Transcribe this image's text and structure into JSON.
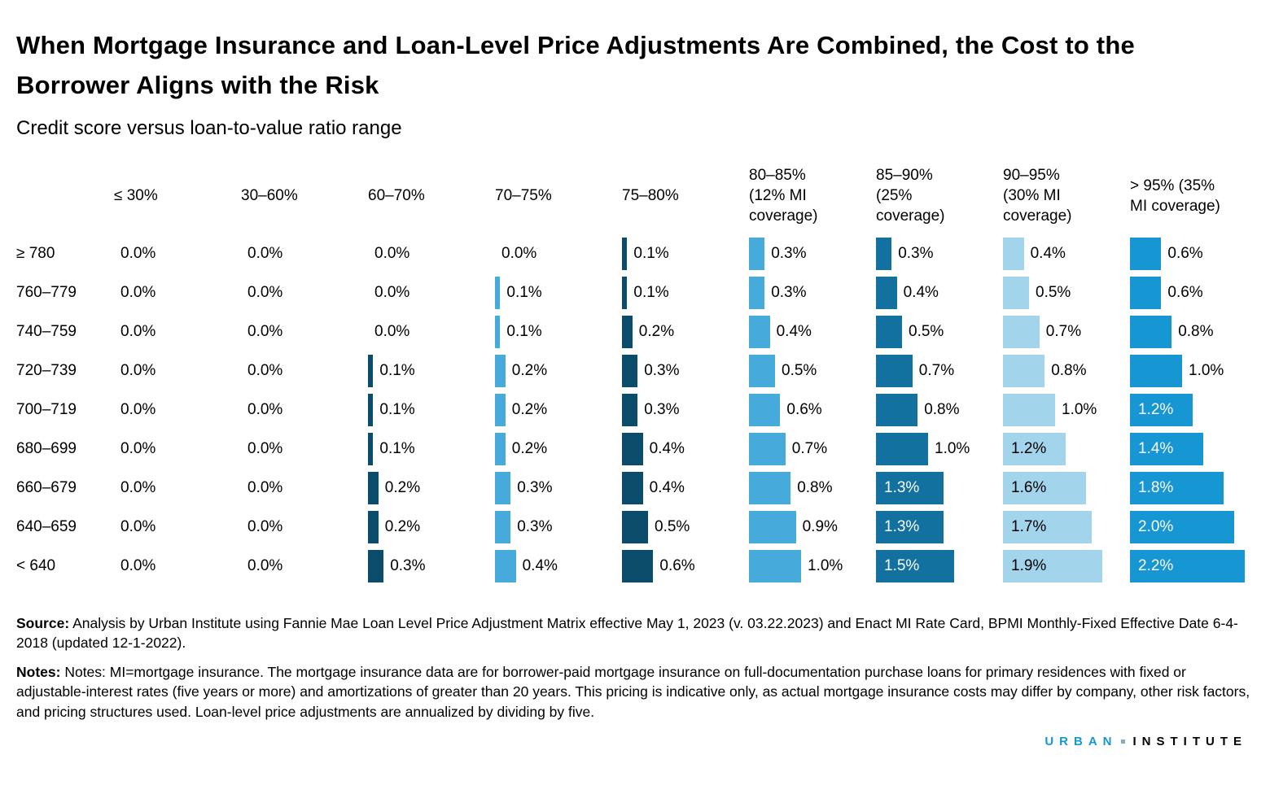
{
  "header": {
    "title": "When Mortgage Insurance and Loan-Level Price Adjustments Are Combined, the Cost to the Borrower Aligns with the Risk",
    "subtitle": "Credit score versus loan-to-value ratio range"
  },
  "chart_data": {
    "type": "bar",
    "orientation": "horizontal",
    "unit": "%",
    "title": "When Mortgage Insurance and Loan-Level Price Adjustments Are Combined, the Cost to the Borrower Aligns with the Risk",
    "subtitle": "Credit score versus loan-to-value ratio range",
    "row_axis_label": "Credit score",
    "column_axis_label": "Loan-to-value ratio range",
    "value_range": [
      0,
      2.2
    ],
    "value_format": "one_decimal_percent",
    "categories": [
      "≥ 780",
      "760–779",
      "740–759",
      "720–739",
      "700–719",
      "680–699",
      "660–679",
      "640–659",
      "< 640"
    ],
    "series": [
      {
        "name": "≤ 30%",
        "header_display": "≤ 30%",
        "color": "#0a4c6a",
        "values": [
          0.0,
          0.0,
          0.0,
          0.0,
          0.0,
          0.0,
          0.0,
          0.0,
          0.0
        ]
      },
      {
        "name": "30–60%",
        "header_display": "30–60%",
        "color": "#0a4c6a",
        "values": [
          0.0,
          0.0,
          0.0,
          0.0,
          0.0,
          0.0,
          0.0,
          0.0,
          0.0
        ]
      },
      {
        "name": "60–70%",
        "header_display": "60–70%",
        "color": "#0a4c6a",
        "values": [
          0.0,
          0.0,
          0.0,
          0.1,
          0.1,
          0.1,
          0.2,
          0.2,
          0.3
        ]
      },
      {
        "name": "70–75%",
        "header_display": "70–75%",
        "color": "#46abdb",
        "values": [
          0.0,
          0.1,
          0.1,
          0.2,
          0.2,
          0.2,
          0.3,
          0.3,
          0.4
        ]
      },
      {
        "name": "75–80%",
        "header_display": "75–80%",
        "color": "#0a4c6a",
        "values": [
          0.1,
          0.1,
          0.2,
          0.3,
          0.3,
          0.4,
          0.4,
          0.5,
          0.6
        ]
      },
      {
        "name": "80–85% (12% MI coverage)",
        "header_display": "80–85%\n(12% MI\ncoverage)",
        "color": "#46abdb",
        "values": [
          0.3,
          0.3,
          0.4,
          0.5,
          0.6,
          0.7,
          0.8,
          0.9,
          1.0
        ]
      },
      {
        "name": "85–90% (25% coverage)",
        "header_display": "85–90%\n(25%\ncoverage)",
        "color": "#12719e",
        "values": [
          0.3,
          0.4,
          0.5,
          0.7,
          0.8,
          1.0,
          1.3,
          1.3,
          1.5
        ]
      },
      {
        "name": "90–95% (30% MI coverage)",
        "header_display": "90–95%\n(30% MI\ncoverage)",
        "color": "#a2d4ec",
        "label_inside_color": "#000000",
        "values": [
          0.4,
          0.5,
          0.7,
          0.8,
          1.0,
          1.2,
          1.6,
          1.7,
          1.9
        ]
      },
      {
        "name": "> 95% (35% MI coverage)",
        "header_display": "> 95% (35%\nMI coverage)",
        "color": "#1696d2",
        "values": [
          0.6,
          0.6,
          0.8,
          1.0,
          1.2,
          1.4,
          1.8,
          2.0,
          2.2
        ]
      }
    ],
    "label_inside_threshold": 1.2
  },
  "footer": {
    "source_label": "Source:",
    "source_text": "Analysis by Urban Institute using Fannie Mae Loan Level Price Adjustment Matrix effective May 1, 2023 (v. 03.22.2023) and Enact MI Rate Card, BPMI Monthly-Fixed Effective Date 6-4-2018 (updated 12-1-2022).",
    "notes_label": "Notes:",
    "notes_text": "Notes: MI=mortgage insurance. The mortgage insurance data are for borrower-paid mortgage insurance on full-documentation purchase loans for primary residences with fixed or adjustable-interest rates (five years or more) and amortizations of greater than 20 years. This pricing is indicative only, as actual mortgage insurance costs may differ by company, other risk factors, and pricing structures used. Loan-level price adjustments are annualized by dividing by five."
  },
  "logo": {
    "urban": "URBAN",
    "institute": "INSTITUTE",
    "urban_color": "#1696d2",
    "institute_color": "#000000",
    "dot_color": "#8aa9ba"
  }
}
